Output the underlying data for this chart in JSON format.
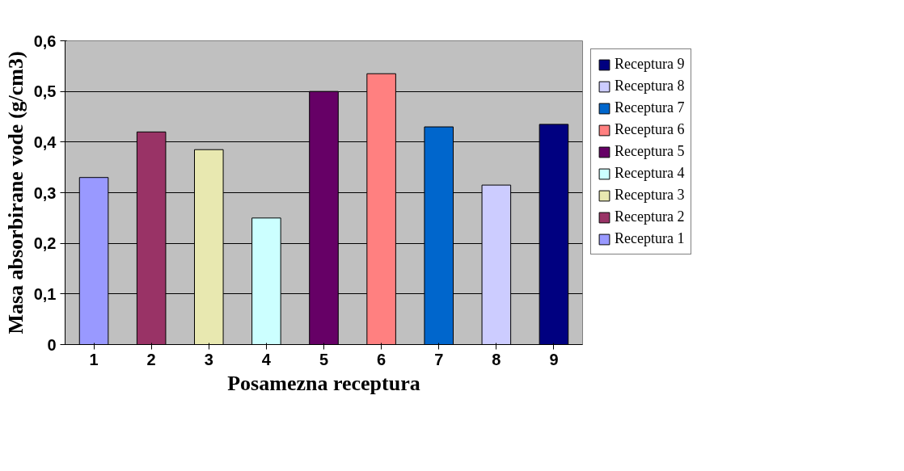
{
  "chart_data": {
    "type": "bar",
    "xlabel": "Posamezna receptura",
    "ylabel": "Masa absorbirane vode (g/cm3)",
    "categories": [
      "1",
      "2",
      "3",
      "4",
      "5",
      "6",
      "7",
      "8",
      "9"
    ],
    "series": [
      {
        "name": "Receptura 1",
        "color": "#9999ff",
        "values": [
          0.33,
          null,
          null,
          null,
          null,
          null,
          null,
          null,
          null
        ]
      },
      {
        "name": "Receptura 2",
        "color": "#993366",
        "values": [
          null,
          0.42,
          null,
          null,
          null,
          null,
          null,
          null,
          null
        ]
      },
      {
        "name": "Receptura 3",
        "color": "#e8e8b0",
        "values": [
          null,
          null,
          0.385,
          null,
          null,
          null,
          null,
          null,
          null
        ]
      },
      {
        "name": "Receptura 4",
        "color": "#ccffff",
        "values": [
          null,
          null,
          null,
          0.25,
          null,
          null,
          null,
          null,
          null
        ]
      },
      {
        "name": "Receptura 5",
        "color": "#660066",
        "values": [
          null,
          null,
          null,
          null,
          0.5,
          null,
          null,
          null,
          null
        ]
      },
      {
        "name": "Receptura 6",
        "color": "#ff8080",
        "values": [
          null,
          null,
          null,
          null,
          null,
          0.535,
          null,
          null,
          null
        ]
      },
      {
        "name": "Receptura 7",
        "color": "#0066cc",
        "values": [
          null,
          null,
          null,
          null,
          null,
          null,
          0.43,
          null,
          null
        ]
      },
      {
        "name": "Receptura 8",
        "color": "#ccccff",
        "values": [
          null,
          null,
          null,
          null,
          null,
          null,
          null,
          0.315,
          null
        ]
      },
      {
        "name": "Receptura 9",
        "color": "#000080",
        "values": [
          null,
          null,
          null,
          null,
          null,
          null,
          null,
          null,
          0.435
        ]
      }
    ],
    "ylim": [
      0,
      0.6
    ],
    "yticks": [
      0,
      {
        "value": 0.1,
        "label": "0,1"
      },
      {
        "value": 0.2,
        "label": "0,2"
      },
      {
        "value": 0.3,
        "label": "0,3"
      },
      {
        "value": 0.4,
        "label": "0,4"
      },
      {
        "value": 0.5,
        "label": "0,5"
      },
      {
        "value": 0.6,
        "label": "0,6"
      }
    ],
    "grid": "y",
    "legend": "right"
  }
}
